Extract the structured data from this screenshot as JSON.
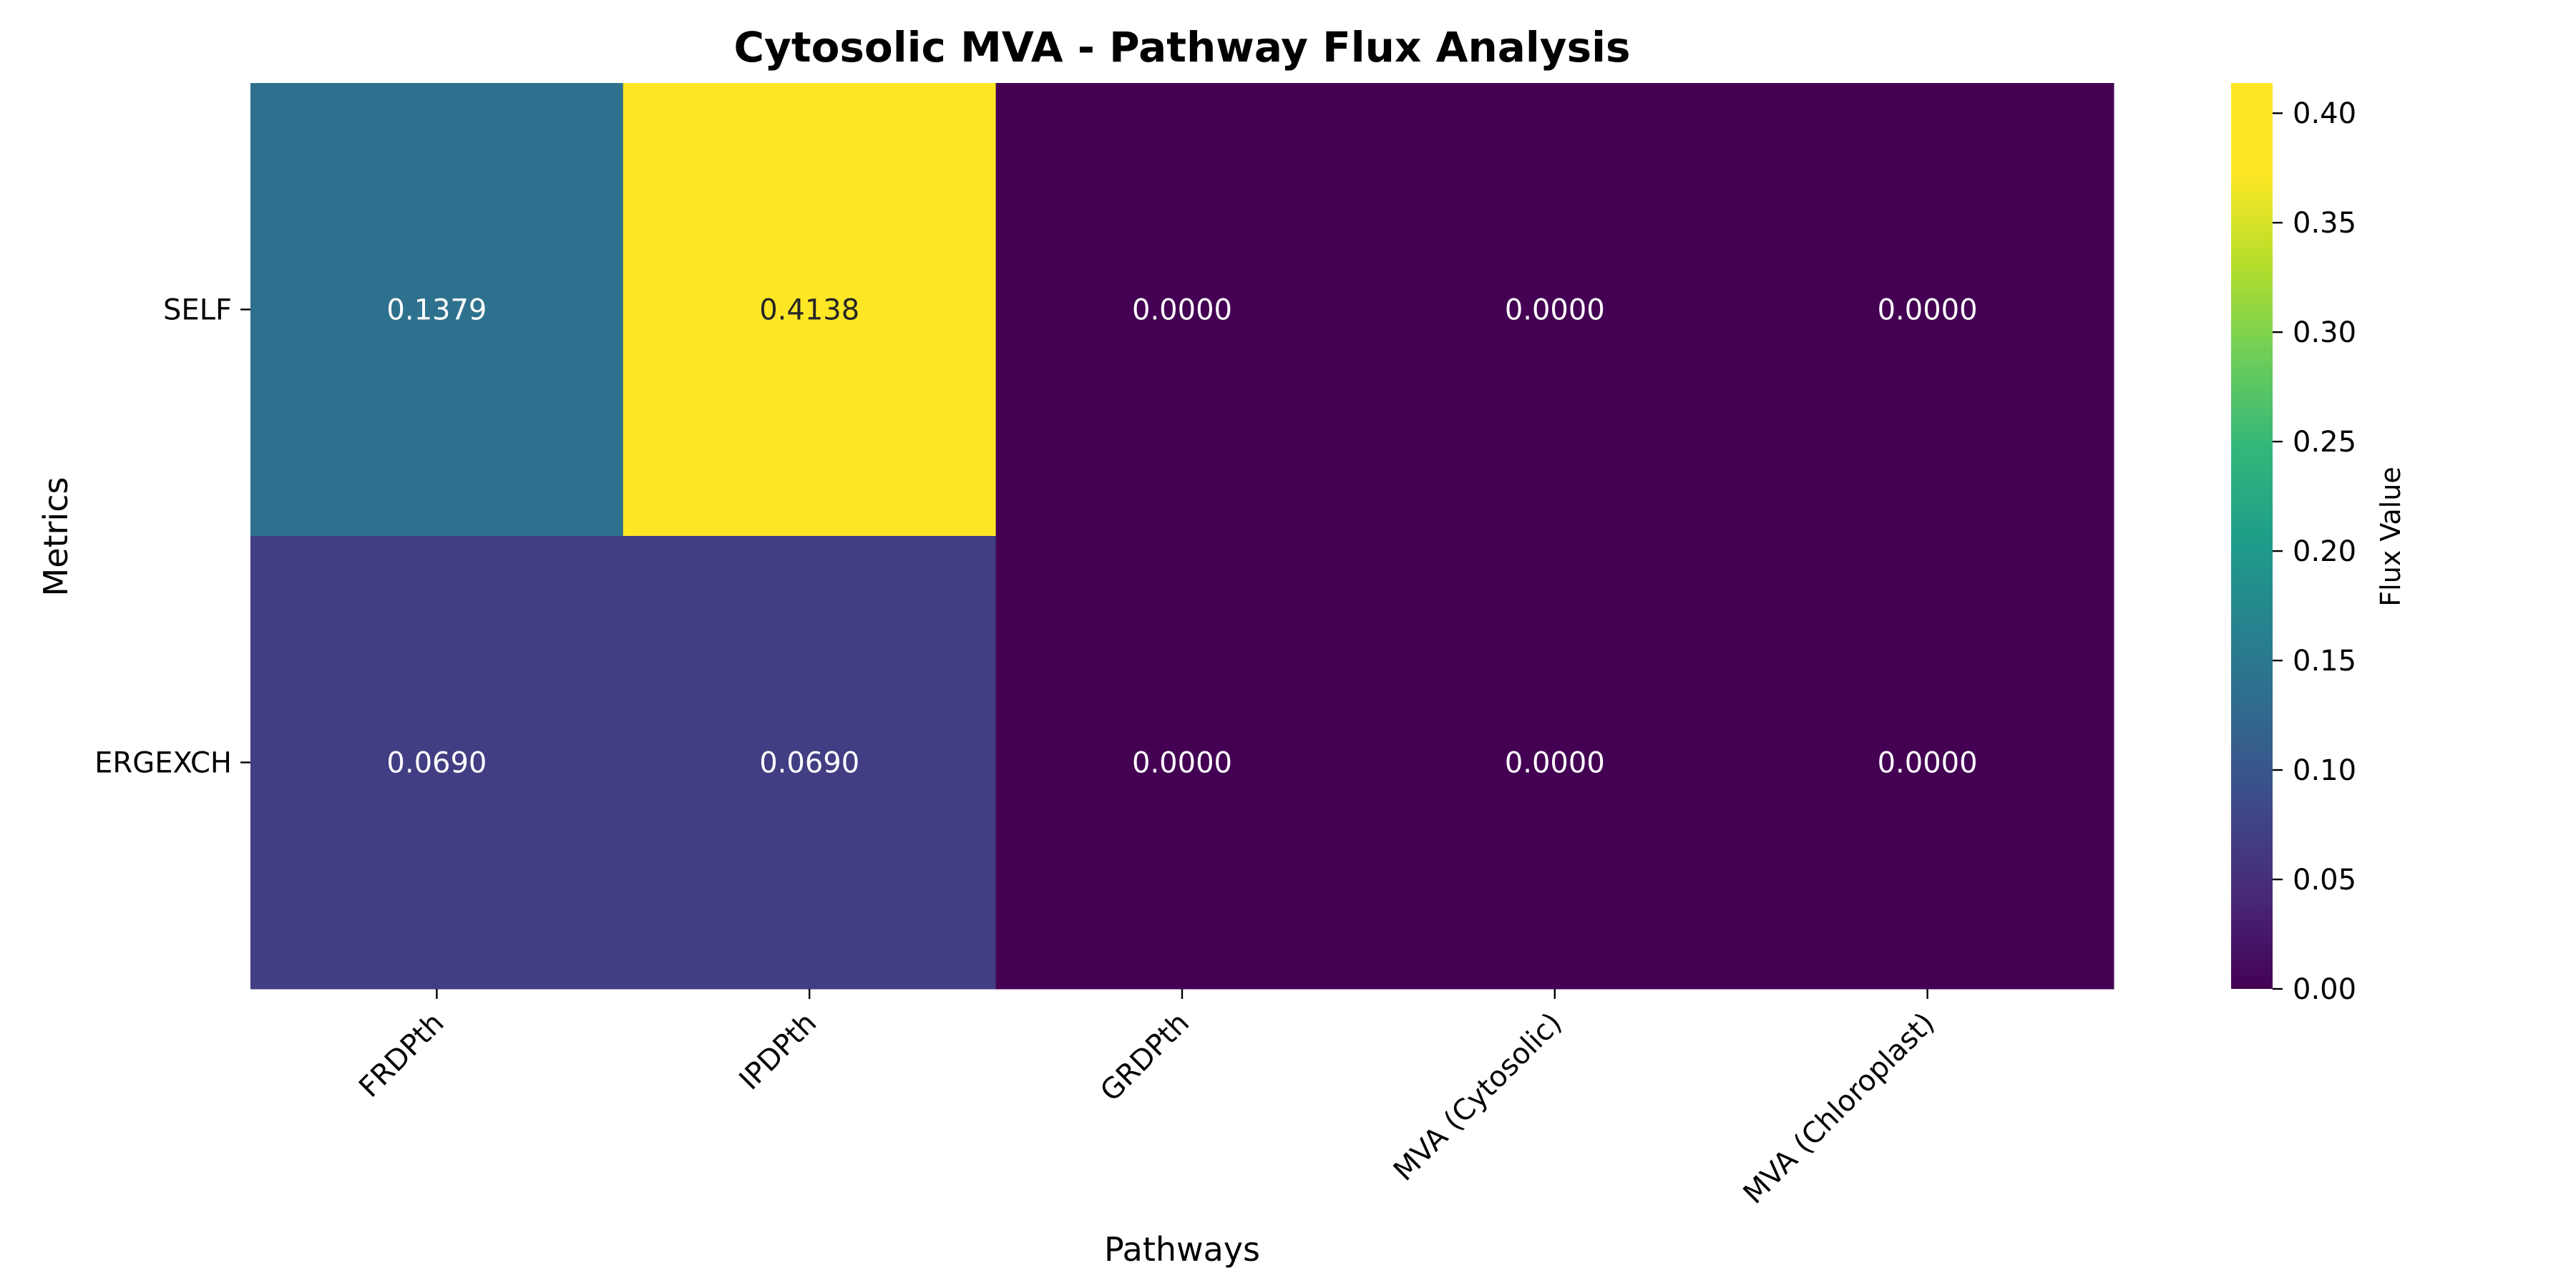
{
  "chart_data": {
    "type": "heatmap",
    "title": "Cytosolic MVA - Pathway Flux Analysis",
    "xlabel": "Pathways",
    "ylabel": "Metrics",
    "x_categories": [
      "FRDPth",
      "IPDPth",
      "GRDPth",
      "MVA (Cytosolic)",
      "MVA (Chloroplast)"
    ],
    "y_categories": [
      "SELF",
      "ERGEXCH"
    ],
    "values": [
      [
        0.1379,
        0.4138,
        0.0,
        0.0,
        0.0
      ],
      [
        0.069,
        0.069,
        0.0,
        0.0,
        0.0
      ]
    ],
    "value_labels": [
      [
        "0.1379",
        "0.4138",
        "0.0000",
        "0.0000",
        "0.0000"
      ],
      [
        "0.0690",
        "0.0690",
        "0.0000",
        "0.0000",
        "0.0000"
      ]
    ],
    "colormap": "viridis",
    "colorbar": {
      "label": "Flux Value",
      "range": [
        0,
        0.4138
      ],
      "ticks": [
        0,
        0.05,
        0.1,
        0.15,
        0.2,
        0.25,
        0.3,
        0.35,
        0.4
      ],
      "tick_labels": [
        "0.00",
        "0.05",
        "0.10",
        "0.15",
        "0.20",
        "0.25",
        "0.30",
        "0.35",
        "0.40"
      ]
    }
  }
}
